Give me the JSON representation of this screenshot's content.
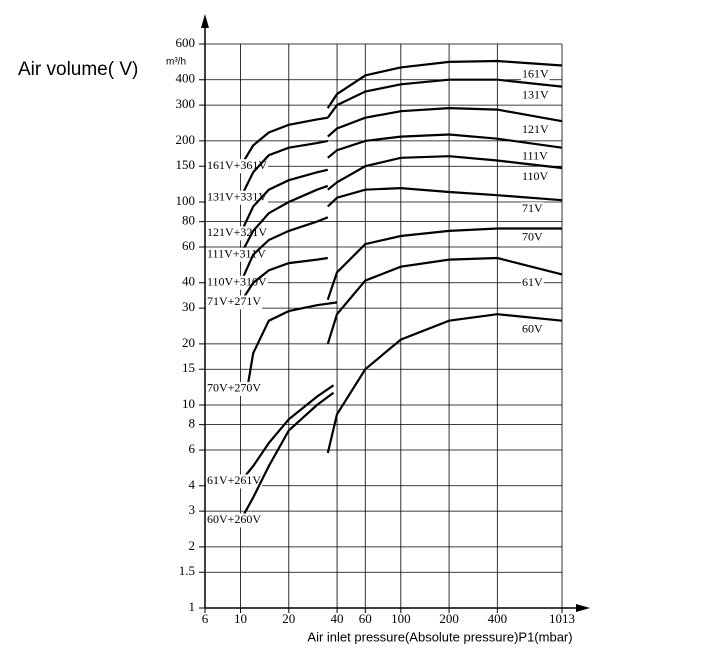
{
  "chart_data": {
    "type": "line",
    "y_label": "Air volume( V)",
    "y_unit": "m³/h",
    "x_label": "Air inlet pressure(Absolute pressure)P1(mbar)",
    "xscale": "log",
    "yscale": "log",
    "grid": true,
    "color": "#000000",
    "xlim": [
      6,
      1013
    ],
    "ylim": [
      1,
      600
    ],
    "xticks": [
      6,
      10,
      20,
      40,
      60,
      100,
      200,
      400,
      1013
    ],
    "yticks": [
      1,
      1.5,
      2,
      3,
      4,
      6,
      8,
      10,
      15,
      20,
      30,
      40,
      60,
      80,
      100,
      150,
      200,
      300,
      400,
      600
    ],
    "series": [
      {
        "name": "161V",
        "x": [
          35,
          40,
          60,
          100,
          200,
          400,
          1013
        ],
        "values": [
          290,
          340,
          420,
          460,
          490,
          495,
          470
        ]
      },
      {
        "name": "131V",
        "x": [
          35,
          40,
          60,
          100,
          200,
          400,
          1013
        ],
        "values": [
          260,
          300,
          350,
          380,
          400,
          400,
          370
        ]
      },
      {
        "name": "121V",
        "x": [
          35,
          40,
          60,
          100,
          200,
          400,
          1013
        ],
        "values": [
          210,
          230,
          260,
          280,
          290,
          285,
          250
        ]
      },
      {
        "name": "111V",
        "x": [
          35,
          40,
          60,
          100,
          200,
          400,
          1013
        ],
        "values": [
          165,
          180,
          200,
          210,
          215,
          205,
          185
        ]
      },
      {
        "name": "110V",
        "x": [
          35,
          40,
          60,
          100,
          200,
          400,
          1013
        ],
        "values": [
          115,
          125,
          150,
          165,
          168,
          160,
          147
        ]
      },
      {
        "name": "71V",
        "x": [
          35,
          40,
          60,
          100,
          200,
          400,
          1013
        ],
        "values": [
          95,
          105,
          115,
          117,
          112,
          108,
          102
        ]
      },
      {
        "name": "70V",
        "x": [
          35,
          40,
          60,
          100,
          200,
          400,
          1013
        ],
        "values": [
          33,
          45,
          62,
          68,
          72,
          74,
          74
        ]
      },
      {
        "name": "61V",
        "x": [
          35,
          40,
          60,
          100,
          200,
          400,
          1013
        ],
        "values": [
          20,
          28,
          41,
          48,
          52,
          53,
          44
        ]
      },
      {
        "name": "60V",
        "x": [
          35,
          40,
          60,
          100,
          200,
          400,
          1013
        ],
        "values": [
          5.8,
          9,
          15,
          21,
          26,
          28,
          26
        ]
      },
      {
        "name": "161V+361V",
        "x": [
          10,
          12,
          15,
          20,
          30,
          35
        ],
        "values": [
          150,
          190,
          220,
          240,
          255,
          260
        ]
      },
      {
        "name": "131V+331V",
        "x": [
          10,
          12,
          15,
          20,
          30,
          35
        ],
        "values": [
          105,
          140,
          170,
          185,
          195,
          200
        ]
      },
      {
        "name": "121V+321V",
        "x": [
          10,
          12,
          15,
          20,
          30,
          35
        ],
        "values": [
          70,
          95,
          115,
          128,
          140,
          144
        ]
      },
      {
        "name": "111V+311V",
        "x": [
          10,
          12,
          15,
          20,
          30,
          35
        ],
        "values": [
          55,
          72,
          88,
          100,
          115,
          120
        ]
      },
      {
        "name": "110V+310V",
        "x": [
          10,
          12,
          15,
          20,
          30,
          35
        ],
        "values": [
          40,
          55,
          65,
          72,
          80,
          84
        ]
      },
      {
        "name": "71V+271V",
        "x": [
          10,
          12,
          15,
          20,
          30,
          35
        ],
        "values": [
          32,
          40,
          46,
          50,
          52,
          53
        ]
      },
      {
        "name": "70V+270V",
        "x": [
          11,
          12,
          15,
          20,
          30,
          40
        ],
        "values": [
          12,
          18,
          26,
          29,
          31,
          32
        ]
      },
      {
        "name": "61V+261V",
        "x": [
          10,
          12,
          15,
          20,
          30,
          38
        ],
        "values": [
          4.2,
          5,
          6.5,
          8.5,
          11,
          12.5
        ]
      },
      {
        "name": "60V+260V",
        "x": [
          10,
          12,
          15,
          20,
          30,
          38
        ],
        "values": [
          2.7,
          3.5,
          5,
          7.5,
          10,
          11.5
        ]
      }
    ]
  }
}
